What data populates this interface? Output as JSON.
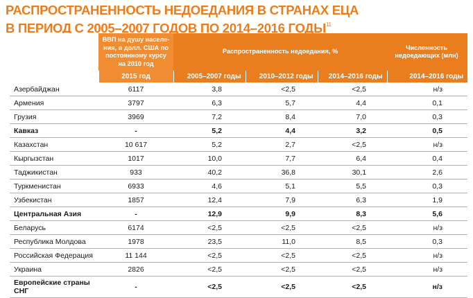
{
  "title": {
    "line1": "РАСПРОСТРАНЕННОСТЬ НЕДОЕДАНИЯ В СТРАНАХ ЕЦА",
    "line2": "В ПЕРИОД С 2005–2007 ГОДОВ ПО 2014–2016 ГОДЫ",
    "footnote": "11"
  },
  "header": {
    "gdp": "ВВП на душу населе-ния, в долл. США по постоянному курсу на 2010 год",
    "prevalence": "Распространенность недоедания, %",
    "number": "Численность недоедающих (млн)",
    "years": [
      "2015 год",
      "2005–2007 годы",
      "2010–2012 годы",
      "2014–2016 годы",
      "2014–2016 годы"
    ]
  },
  "rows": [
    {
      "name": "Азербайджан",
      "gdp": "6117",
      "p1": "3,8",
      "p2": "<2,5",
      "p3": "<2,5",
      "n": "н/з"
    },
    {
      "name": "Армения",
      "gdp": "3797",
      "p1": "6,3",
      "p2": "5,7",
      "p3": "4,4",
      "n": "0,1"
    },
    {
      "name": "Грузия",
      "gdp": "3969",
      "p1": "7,2",
      "p2": "8,4",
      "p3": "7,0",
      "n": "0,3"
    },
    {
      "name": "Кавказ",
      "gdp": "-",
      "p1": "5,2",
      "p2": "4,4",
      "p3": "3,2",
      "n": "0,5",
      "sub": true
    },
    {
      "name": "Казахстан",
      "gdp": "10 617",
      "p1": "5,2",
      "p2": "2,7",
      "p3": "<2,5",
      "n": "н/з"
    },
    {
      "name": "Кыргызстан",
      "gdp": "1017",
      "p1": "10,0",
      "p2": "7,7",
      "p3": "6,4",
      "n": "0,4"
    },
    {
      "name": "Таджикистан",
      "gdp": "933",
      "p1": "40,2",
      "p2": "36,8",
      "p3": "30,1",
      "n": "2,6"
    },
    {
      "name": "Туркменистан",
      "gdp": "6933",
      "p1": "4,6",
      "p2": "5,1",
      "p3": "5,5",
      "n": "0,3"
    },
    {
      "name": "Узбекистан",
      "gdp": "1857",
      "p1": "12,4",
      "p2": "7,9",
      "p3": "6,3",
      "n": "1,9"
    },
    {
      "name": "Центральная Азия",
      "gdp": "-",
      "p1": "12,9",
      "p2": "9,9",
      "p3": "8,3",
      "n": "5,6",
      "sub": true
    },
    {
      "name": "Беларусь",
      "gdp": "6174",
      "p1": "<2,5",
      "p2": "<2,5",
      "p3": "<2,5",
      "n": "н/з"
    },
    {
      "name": "Республика Молдова",
      "gdp": "1978",
      "p1": "23,5",
      "p2": "11,0",
      "p3": "8,5",
      "n": "0,3"
    },
    {
      "name": "Российская Федерация",
      "gdp": "11 144",
      "p1": "<2,5",
      "p2": "<2,5",
      "p3": "<2,5",
      "n": "н/з"
    },
    {
      "name": "Украина",
      "gdp": "2826",
      "p1": "<2,5",
      "p2": "<2,5",
      "p3": "<2,5",
      "n": "н/з"
    },
    {
      "name": "Европейские страны СНГ",
      "gdp": "-",
      "p1": "<2,5",
      "p2": "<2,5",
      "p3": "<2,5",
      "n": "н/з",
      "sub": true,
      "twoline": true
    }
  ]
}
